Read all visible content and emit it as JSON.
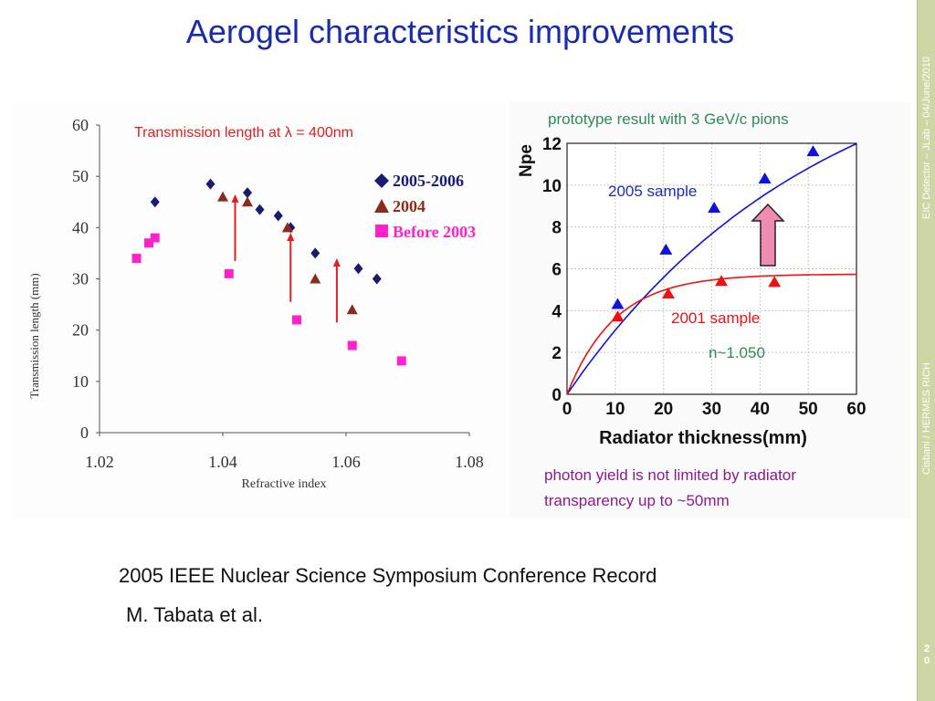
{
  "slide": {
    "title": "Aerogel characteristics improvements",
    "sidebar_top": "EIC Detector – JLab – 04/June/2010",
    "sidebar_bottom": "Cisbani / HERMES RICH",
    "page_number": "2\n0",
    "caption_line1": "2005 IEEE Nuclear Science Symposium Conference Record",
    "caption_line2": "M. Tabata et al."
  },
  "chart_data": [
    {
      "type": "scatter",
      "title": "Transmission length at λ =  400nm",
      "xlabel": "Refractive index",
      "ylabel": "Transmission length (mm)",
      "xlim": [
        1.02,
        1.08
      ],
      "ylim": [
        0,
        60
      ],
      "x_ticks": [
        "1.02",
        "1.04",
        "1.06",
        "1.08"
      ],
      "y_ticks": [
        "0",
        "10",
        "20",
        "30",
        "40",
        "50",
        "60"
      ],
      "grid": false,
      "legend_position": "top-right",
      "series": [
        {
          "name": "2005-2006",
          "marker": "diamond",
          "color": "#1a1a6e",
          "points": [
            {
              "x": 1.029,
              "y": 45
            },
            {
              "x": 1.038,
              "y": 48.5
            },
            {
              "x": 1.044,
              "y": 46.8
            },
            {
              "x": 1.046,
              "y": 43.5
            },
            {
              "x": 1.049,
              "y": 42.3
            },
            {
              "x": 1.051,
              "y": 40
            },
            {
              "x": 1.055,
              "y": 35
            },
            {
              "x": 1.062,
              "y": 32
            },
            {
              "x": 1.065,
              "y": 30
            }
          ]
        },
        {
          "name": "2004",
          "marker": "triangle",
          "color": "#8b2a1e",
          "points": [
            {
              "x": 1.04,
              "y": 46
            },
            {
              "x": 1.044,
              "y": 45
            },
            {
              "x": 1.0505,
              "y": 40
            },
            {
              "x": 1.055,
              "y": 30
            },
            {
              "x": 1.061,
              "y": 24
            }
          ]
        },
        {
          "name": "Before 2003",
          "marker": "square",
          "color": "#ff22cc",
          "points": [
            {
              "x": 1.026,
              "y": 34
            },
            {
              "x": 1.028,
              "y": 37
            },
            {
              "x": 1.029,
              "y": 38
            },
            {
              "x": 1.041,
              "y": 31
            },
            {
              "x": 1.052,
              "y": 22
            },
            {
              "x": 1.061,
              "y": 17
            },
            {
              "x": 1.069,
              "y": 14
            }
          ]
        }
      ],
      "arrows": [
        {
          "x": 1.042,
          "y_from": 33.5,
          "y_to": 46.5
        },
        {
          "x": 1.051,
          "y_from": 25.5,
          "y_to": 39
        },
        {
          "x": 1.0585,
          "y_from": 21.5,
          "y_to": 34
        }
      ],
      "colors": {
        "title": "#e02020",
        "arrow": "#e02020",
        "axis": "#333333"
      }
    },
    {
      "type": "line",
      "title": "prototype result with 3 GeV/c pions",
      "xlabel": "Radiator thickness(mm)",
      "ylabel": "Npe",
      "xlim": [
        0,
        60
      ],
      "ylim": [
        0,
        12
      ],
      "x_ticks": [
        "0",
        "10",
        "20",
        "30",
        "40",
        "50",
        "60"
      ],
      "y_ticks": [
        "0",
        "2",
        "4",
        "6",
        "8",
        "10",
        "12"
      ],
      "grid": true,
      "series": [
        {
          "name": "2005 sample",
          "color": "#1010e0",
          "points": [
            {
              "x": 10.5,
              "y": 4.3
            },
            {
              "x": 20.5,
              "y": 6.9
            },
            {
              "x": 30.5,
              "y": 8.9
            },
            {
              "x": 41,
              "y": 10.3
            },
            {
              "x": 51,
              "y": 11.6
            }
          ],
          "fit": {
            "a": 17.5,
            "tau": 52
          }
        },
        {
          "name": "2001 sample",
          "color": "#ee1111",
          "points": [
            {
              "x": 10.5,
              "y": 3.7
            },
            {
              "x": 21,
              "y": 4.8
            },
            {
              "x": 32,
              "y": 5.4
            },
            {
              "x": 43,
              "y": 5.35
            }
          ],
          "fit": {
            "a": 5.75,
            "tau": 10
          }
        }
      ],
      "annotations": [
        "n~1.050"
      ],
      "note": "photon yield is not limited by radiator transparency up to ~50mm",
      "colors": {
        "title": "#2e8b57",
        "label_2005": "#1a2cc0",
        "label_2001": "#ee1111",
        "n_label": "#2e8b57",
        "note": "#8b1a8b",
        "arrow": "#f08cb0"
      }
    }
  ]
}
